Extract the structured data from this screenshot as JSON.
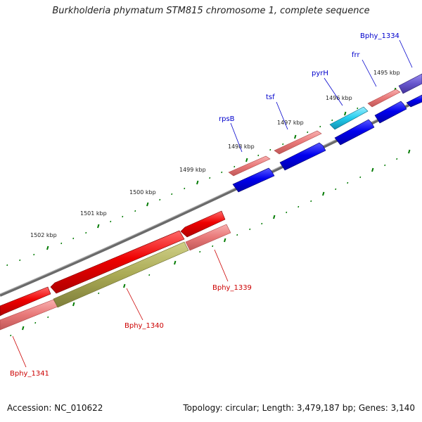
{
  "title": "Burkholderia phymatum STM815 chromosome 1, complete sequence",
  "footer": {
    "accession": "Accession: NC_010622",
    "summary": "Topology: circular; Length: 3,479,187 bp; Genes: 3,140"
  },
  "colors": {
    "forward_label": "#0000cc",
    "reverse_label": "#cc0000",
    "backbone": "#808080",
    "tick": "#007a00",
    "cds_blue": "#0000ee",
    "cds_red": "#ee0000",
    "cds_pink": "#e87878",
    "cds_cyan": "#22ccee",
    "cds_purple": "#6655cc",
    "cds_olive": "#aaaa55"
  },
  "kbp_labels": [
    "1495 kbp",
    "1496 kbp",
    "1497 kbp",
    "1498 kbp",
    "1499 kbp",
    "1500 kbp",
    "1501 kbp",
    "1502 kbp"
  ],
  "forward_genes": [
    "Bphy_1334",
    "frr",
    "pyrH",
    "tsf",
    "rpsB"
  ],
  "reverse_genes": [
    "Bphy_1339",
    "Bphy_1340",
    "Bphy_1341"
  ]
}
